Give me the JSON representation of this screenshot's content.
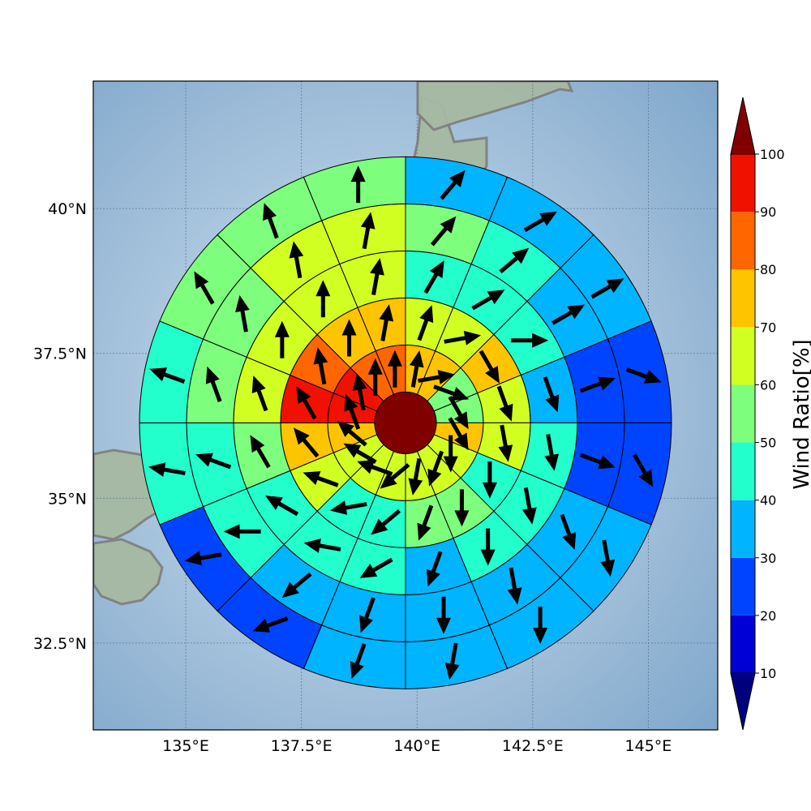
{
  "map": {
    "lon_range": [
      133.0,
      146.5
    ],
    "lat_range": [
      31.0,
      42.2
    ],
    "x_ticks": [
      {
        "value": 135.0,
        "label": "135°E"
      },
      {
        "value": 137.5,
        "label": "137.5°E"
      },
      {
        "value": 140.0,
        "label": "140°E"
      },
      {
        "value": 142.5,
        "label": "142.5°E"
      },
      {
        "value": 145.0,
        "label": "145°E"
      }
    ],
    "y_ticks": [
      {
        "value": 40.0,
        "label": "40°N"
      },
      {
        "value": 37.5,
        "label": "37.5°N"
      },
      {
        "value": 35.0,
        "label": "35°N"
      },
      {
        "value": 32.5,
        "label": "32.5°N"
      }
    ],
    "colors": {
      "sea_light": "#c9dced",
      "sea_dark": "#7fa8cb",
      "land": "#9fb7a0",
      "coastline": "#808080",
      "grid": "#5c7a99"
    }
  },
  "colorbar": {
    "label": "Wind Ratio[%]",
    "ticks": [
      "10",
      "20",
      "30",
      "40",
      "50",
      "60",
      "70",
      "80",
      "90",
      "100"
    ],
    "bins": [
      {
        "color": "#0000d6"
      },
      {
        "color": "#0044ff"
      },
      {
        "color": "#00b4ff"
      },
      {
        "color": "#22ffcc"
      },
      {
        "color": "#7dff7d"
      },
      {
        "color": "#d2ff22"
      },
      {
        "color": "#ffc400"
      },
      {
        "color": "#ff6600"
      },
      {
        "color": "#f01100"
      }
    ],
    "under_color": "#00007f",
    "over_color": "#800000"
  },
  "chart_data": {
    "type": "polar_sector_map",
    "center": {
      "lon": 139.75,
      "lat": 36.3
    },
    "center_value": 100,
    "sectors_per_ring": 16,
    "sector_order": "clockwise from north",
    "rings": [
      {
        "ratio": [
          70,
          70,
          50,
          50,
          70,
          60,
          60,
          60,
          60,
          60,
          60,
          70,
          90,
          90,
          80,
          80
        ],
        "wind_dir": [
          10,
          80,
          110,
          150,
          150,
          180,
          200,
          190,
          230,
          290,
          300,
          310,
          340,
          350,
          0,
          0
        ]
      },
      {
        "ratio": [
          60,
          60,
          70,
          60,
          60,
          40,
          50,
          50,
          40,
          40,
          60,
          70,
          90,
          80,
          70,
          70
        ],
        "wind_dir": [
          20,
          80,
          150,
          160,
          170,
          180,
          180,
          200,
          230,
          260,
          290,
          320,
          330,
          350,
          0,
          10
        ]
      },
      {
        "ratio": [
          40,
          40,
          40,
          30,
          40,
          40,
          40,
          30,
          40,
          40,
          40,
          50,
          60,
          60,
          60,
          60
        ],
        "wind_dir": [
          30,
          60,
          90,
          160,
          170,
          170,
          180,
          200,
          240,
          280,
          300,
          330,
          340,
          0,
          0,
          10
        ]
      },
      {
        "ratio": [
          50,
          40,
          30,
          20,
          20,
          30,
          30,
          30,
          30,
          30,
          40,
          40,
          50,
          50,
          60,
          60
        ],
        "wind_dir": [
          40,
          50,
          60,
          70,
          110,
          160,
          170,
          180,
          200,
          230,
          270,
          290,
          340,
          350,
          350,
          10
        ]
      },
      {
        "ratio": [
          30,
          30,
          30,
          20,
          20,
          30,
          30,
          30,
          30,
          20,
          20,
          40,
          40,
          50,
          50,
          50
        ],
        "wind_dir": [
          40,
          60,
          60,
          110,
          150,
          170,
          180,
          190,
          200,
          250,
          260,
          280,
          290,
          330,
          340,
          0
        ]
      }
    ]
  }
}
